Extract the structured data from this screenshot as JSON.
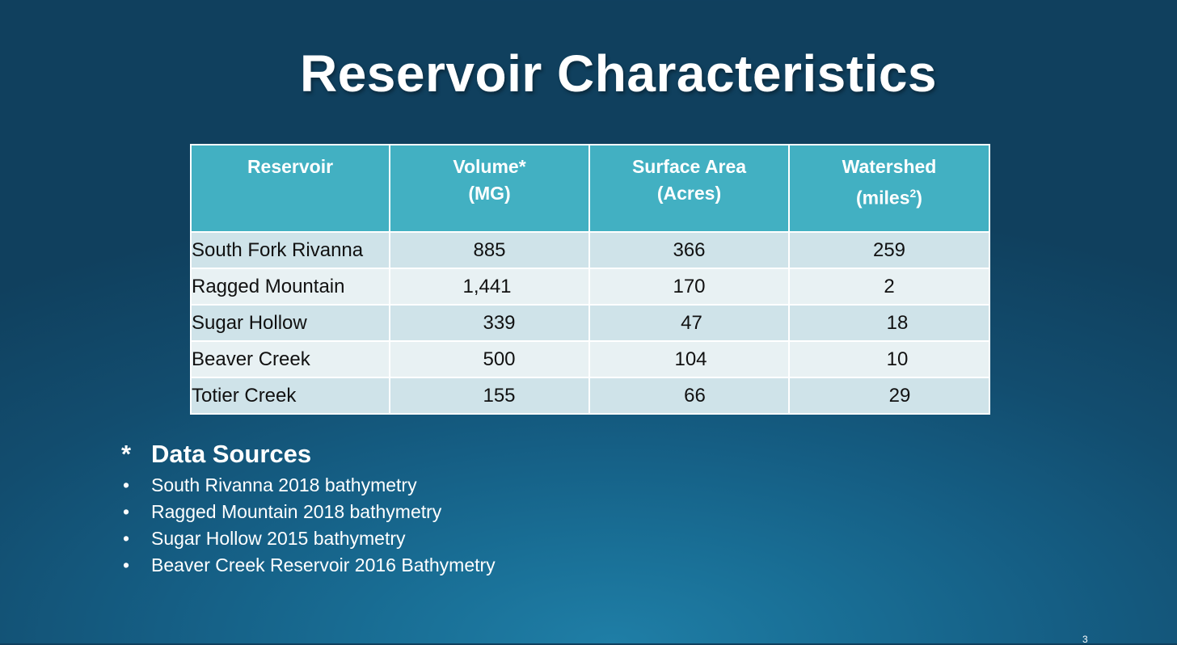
{
  "slide": {
    "title": "Reservoir Characteristics",
    "page_number": "3"
  },
  "table": {
    "headers": [
      {
        "line1": "Reservoir",
        "line2": ""
      },
      {
        "line1": "Volume*",
        "line2": "(MG)"
      },
      {
        "line1": "Surface Area",
        "line2": "(Acres)"
      },
      {
        "line1": "Watershed",
        "line2": "(miles",
        "superscript": "2",
        "line2_suffix": ")"
      }
    ],
    "rows": [
      {
        "name": "South Fork Rivanna",
        "volume": "885",
        "surface_area": "366",
        "watershed": "259"
      },
      {
        "name": "Ragged Mountain",
        "volume": "1,441",
        "surface_area": "170",
        "watershed": "2"
      },
      {
        "name": "Sugar Hollow",
        "volume": "339",
        "surface_area": "47",
        "watershed": "18"
      },
      {
        "name": "Beaver Creek",
        "volume": "500",
        "surface_area": "104",
        "watershed": "10"
      },
      {
        "name": "Totier Creek",
        "volume": "155",
        "surface_area": "66",
        "watershed": "29"
      }
    ]
  },
  "data_sources": {
    "marker": "*",
    "heading": "Data Sources",
    "bullet": "•",
    "items": [
      "South Rivanna 2018 bathymetry",
      "Ragged Mountain 2018 bathymetry",
      "Sugar Hollow 2015 bathymetry",
      "Beaver Creek Reservoir 2016 Bathymetry"
    ]
  },
  "colors": {
    "header_fill": "#42b0c2",
    "row_fill_dark": "#cfe3e9",
    "row_fill_light": "#e8f1f3",
    "background": "#124d6f"
  }
}
